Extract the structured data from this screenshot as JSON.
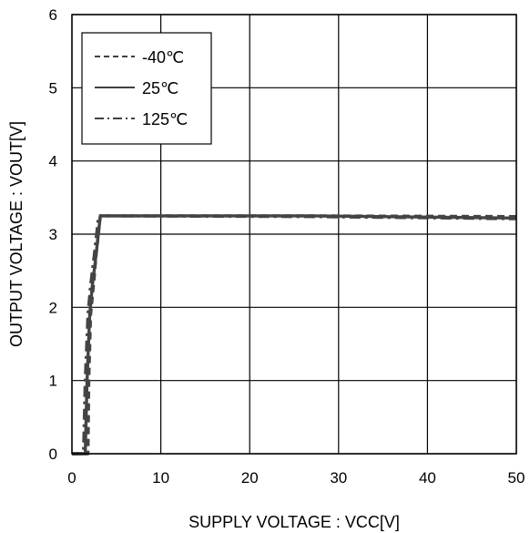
{
  "chart_data": {
    "type": "line",
    "xlabel": "SUPPLY VOLTAGE : VCC[V]",
    "ylabel": "OUTPUT VOLTAGE : VOUT[V]",
    "xlim": [
      0,
      50
    ],
    "ylim": [
      0,
      6
    ],
    "x_ticks": [
      "0",
      "10",
      "20",
      "30",
      "40",
      "50"
    ],
    "y_ticks": [
      "0",
      "1",
      "2",
      "3",
      "4",
      "5",
      "6"
    ],
    "grid": true,
    "legend_position": "top-left",
    "colors": {
      "line": "#444444",
      "grid": "#000000",
      "background": "#ffffff"
    },
    "series": [
      {
        "name": "-40℃",
        "style": "dashed",
        "x": [
          0,
          1.8,
          1.9,
          2.1,
          2.5,
          2.7,
          3.2,
          26.7,
          50
        ],
        "y": [
          0,
          0,
          1.0,
          1.9,
          2.4,
          2.7,
          3.25,
          3.25,
          3.24
        ]
      },
      {
        "name": "25℃",
        "style": "solid",
        "x": [
          0,
          1.5,
          1.7,
          2.0,
          2.3,
          2.6,
          3.2,
          26.7,
          50
        ],
        "y": [
          0,
          0,
          1.0,
          1.9,
          2.3,
          2.6,
          3.25,
          3.25,
          3.22
        ]
      },
      {
        "name": "125℃",
        "style": "dashdot",
        "x": [
          0,
          1.3,
          1.5,
          1.8,
          2.1,
          2.5,
          3.0,
          26.7,
          50
        ],
        "y": [
          0,
          0,
          1.0,
          1.9,
          2.3,
          2.7,
          3.25,
          3.24,
          3.21
        ]
      }
    ]
  }
}
